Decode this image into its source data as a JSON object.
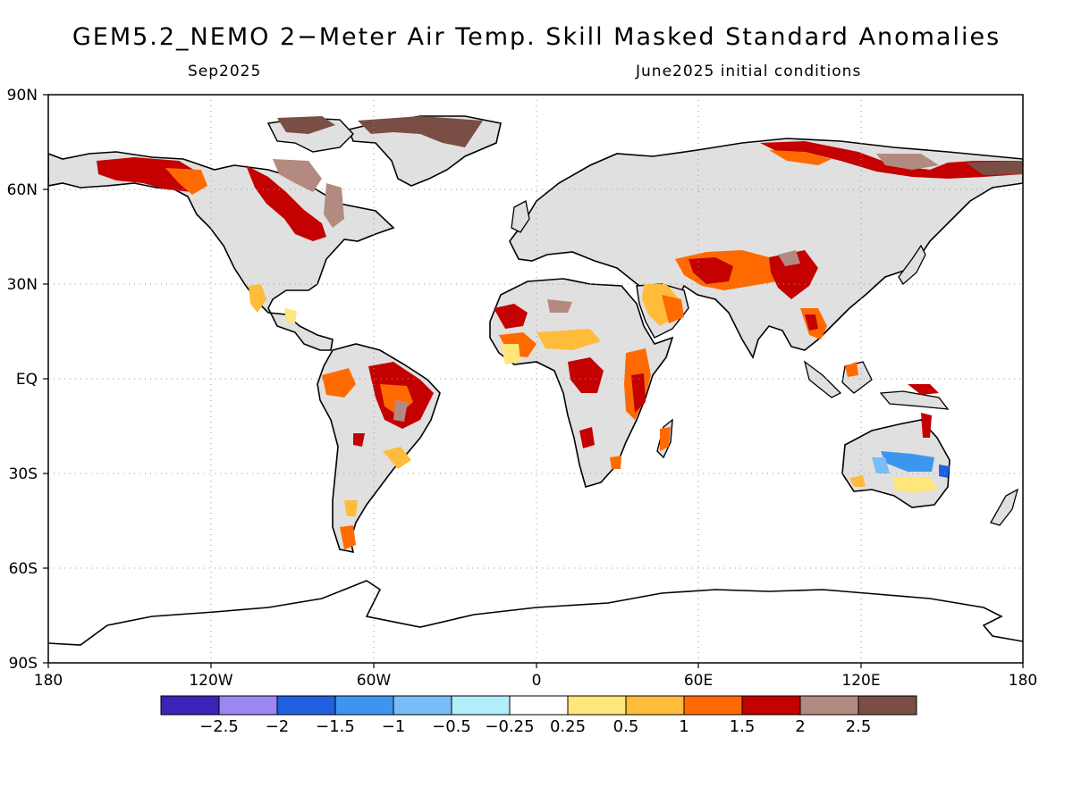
{
  "title": "GEM5.2_NEMO 2−Meter Air Temp. Skill Masked Standard Anomalies",
  "subtitle_left": "Sep2025",
  "subtitle_right": "June2025 initial conditions",
  "lat_ticks": [
    "90N",
    "60N",
    "30N",
    "EQ",
    "30S",
    "60S",
    "90S"
  ],
  "lon_ticks": [
    "180",
    "120W",
    "60W",
    "0",
    "60E",
    "120E",
    "180"
  ],
  "colorbar": {
    "colors": [
      "#3c22b8",
      "#9b86f2",
      "#1f5fe0",
      "#3c96f0",
      "#78bdf7",
      "#b2eefa",
      "#ffffff",
      "#ffe67a",
      "#ffbb3a",
      "#ff6a00",
      "#c40000",
      "#b38a80",
      "#7a4e44"
    ],
    "labels": [
      "−2.5",
      "−2",
      "−1.5",
      "−1",
      "−0.5",
      "−0.25",
      "0.25",
      "0.5",
      "1",
      "1.5",
      "2",
      "2.5"
    ]
  },
  "land_fill": "#e0e0e0",
  "ocean_fill": "#ffffff"
}
